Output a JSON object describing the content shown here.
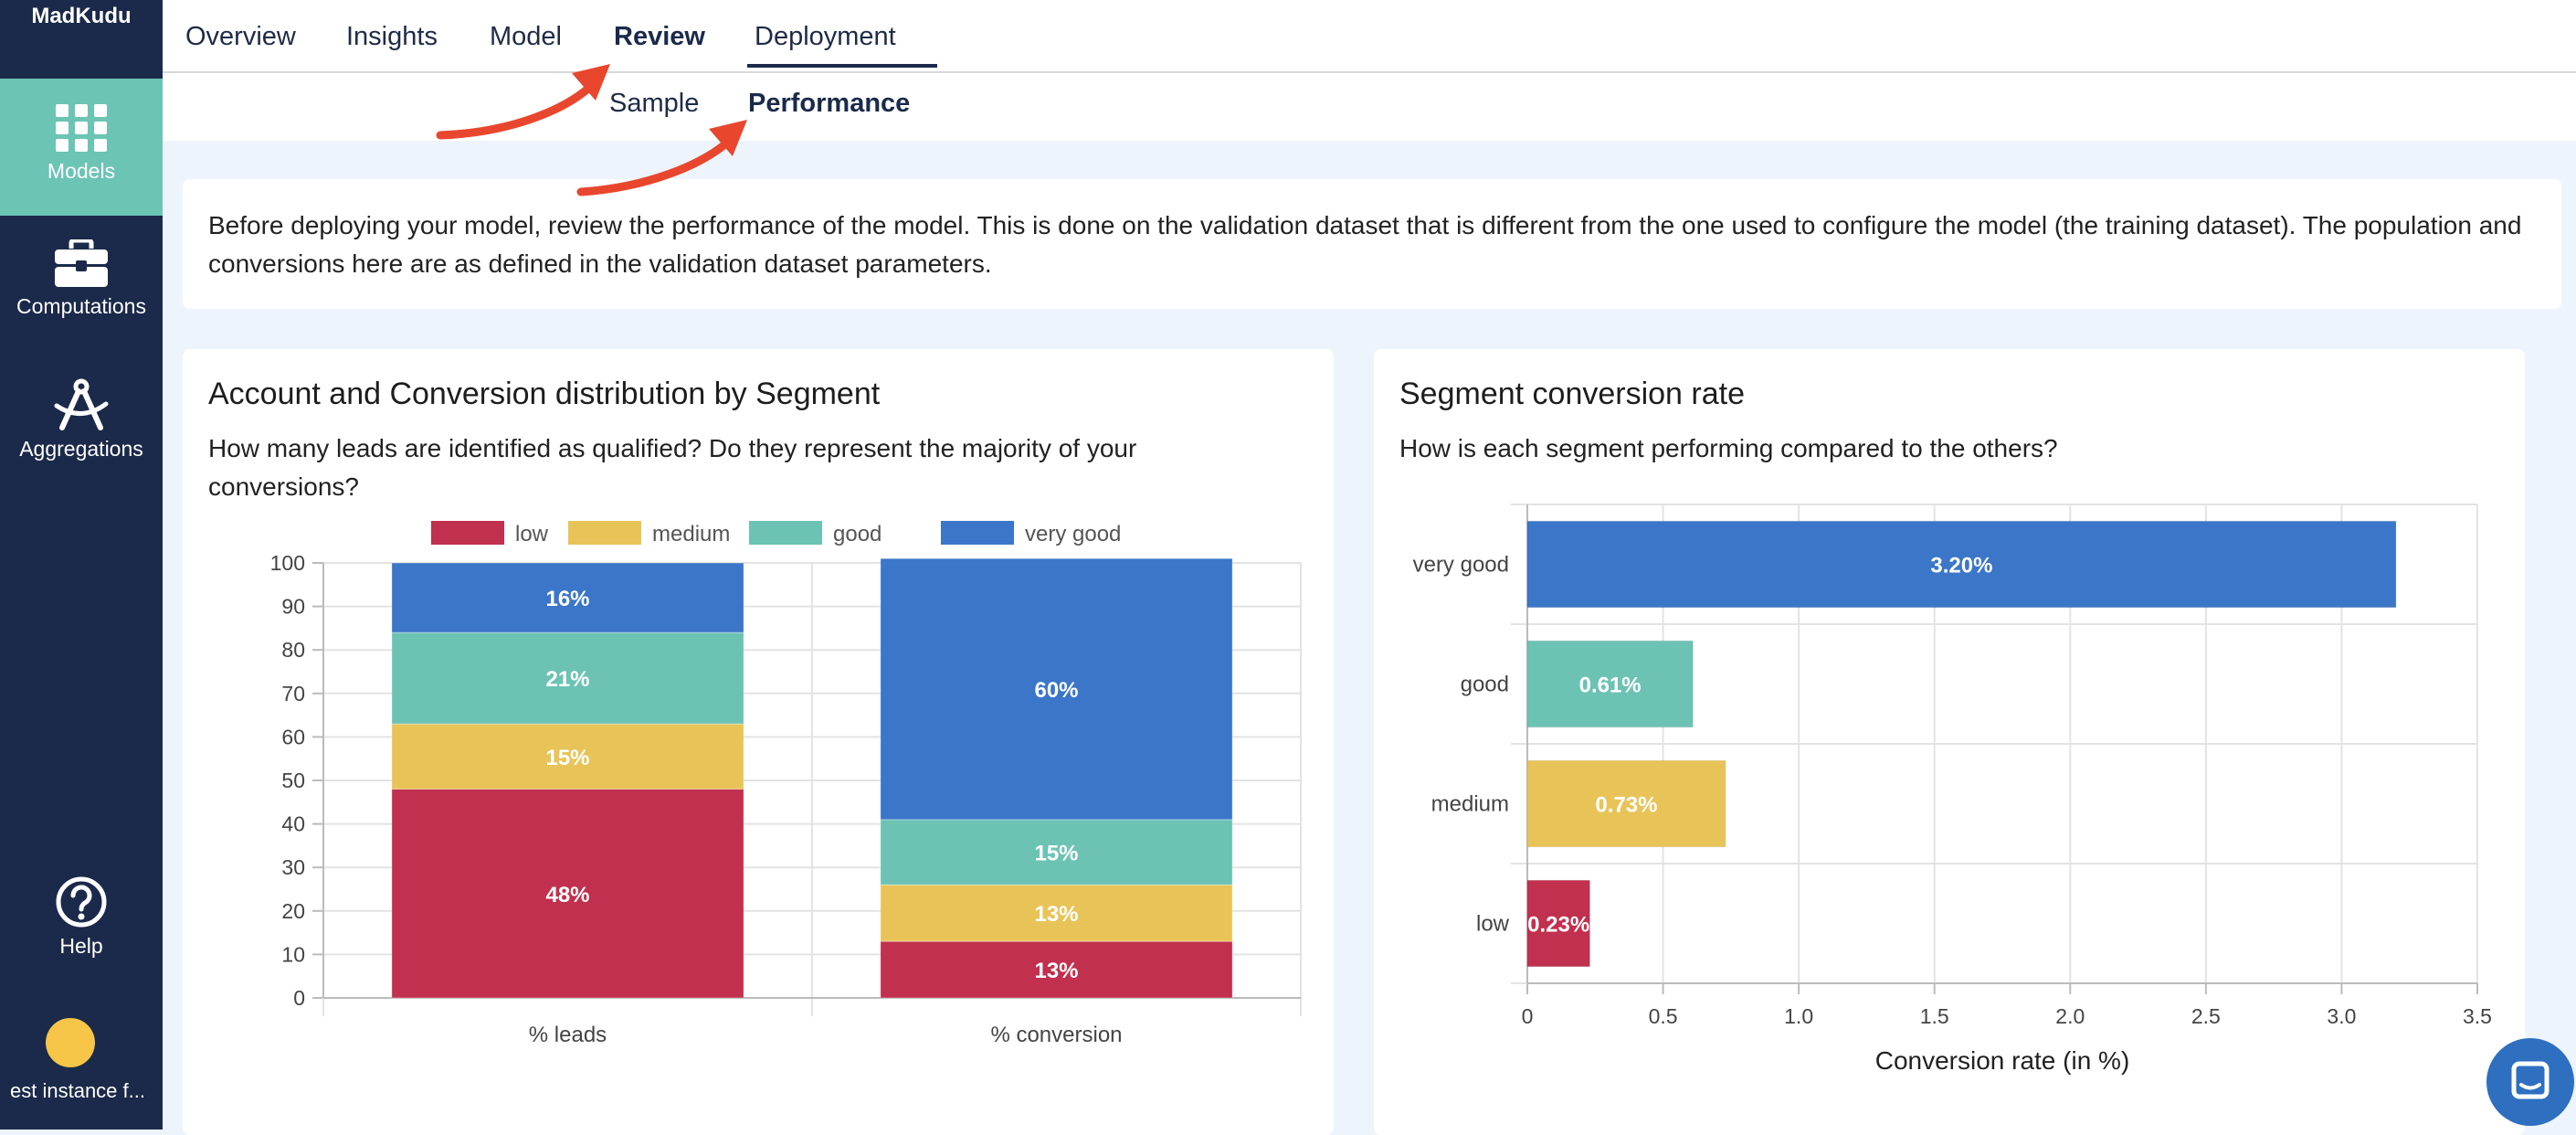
{
  "app": {
    "brand": "MadKudu"
  },
  "sidebar": {
    "items": [
      {
        "label": "Models",
        "icon": "grid-icon",
        "active": true
      },
      {
        "label": "Computations",
        "icon": "toolbox-icon",
        "active": false
      },
      {
        "label": "Aggregations",
        "icon": "compass-icon",
        "active": false
      }
    ],
    "help": {
      "label": "Help",
      "icon": "help-icon"
    },
    "instance": {
      "label": "est instance f..."
    }
  },
  "tabs": [
    "Overview",
    "Insights",
    "Model",
    "Review",
    "Deployment"
  ],
  "active_tab": "Review",
  "subtabs": [
    "Sample",
    "Performance"
  ],
  "active_subtab": "Performance",
  "intro": {
    "text": "Before deploying your model, review the performance of the model. This is done on the validation dataset that is different from the one used to configure the model (the training dataset). The population and conversions here are as defined in the validation dataset parameters."
  },
  "left_card": {
    "title": "Account and Conversion distribution by Segment",
    "subtitle": "How many leads are identified as qualified? Do they represent the majority of your conversions?"
  },
  "right_card": {
    "title": "Segment conversion rate",
    "subtitle": "How is each segment performing compared to the others?"
  },
  "colors": {
    "low": "#c1304e",
    "medium": "#e8c458",
    "good": "#6cc3b4",
    "very_good": "#3b76c8"
  },
  "chart_data": [
    {
      "type": "bar",
      "stacked": true,
      "title": "Account and Conversion distribution by Segment",
      "categories": [
        "% leads",
        "% conversion"
      ],
      "series": [
        {
          "name": "low",
          "values": [
            48,
            13
          ],
          "labels": [
            "48%",
            "13%"
          ]
        },
        {
          "name": "medium",
          "values": [
            15,
            13
          ],
          "labels": [
            "15%",
            "13%"
          ]
        },
        {
          "name": "good",
          "values": [
            21,
            15
          ],
          "labels": [
            "21%",
            "15%"
          ]
        },
        {
          "name": "very good",
          "values": [
            16,
            60
          ],
          "labels": [
            "16%",
            "60%"
          ]
        }
      ],
      "ylim": [
        0,
        100
      ],
      "yticks": [
        0,
        10,
        20,
        30,
        40,
        50,
        60,
        70,
        80,
        90,
        100
      ],
      "legend": "top"
    },
    {
      "type": "bar",
      "orientation": "horizontal",
      "title": "Segment conversion rate",
      "categories": [
        "very good",
        "good",
        "medium",
        "low"
      ],
      "values": [
        3.2,
        0.61,
        0.73,
        0.23
      ],
      "labels": [
        "3.20%",
        "0.61%",
        "0.73%",
        "0.23%"
      ],
      "xlabel": "Conversion rate (in %)",
      "xlim": [
        0,
        3.5
      ],
      "xticks": [
        "0",
        "0.5",
        "1.0",
        "1.5",
        "2.0",
        "2.5",
        "3.0",
        "3.5"
      ]
    }
  ]
}
